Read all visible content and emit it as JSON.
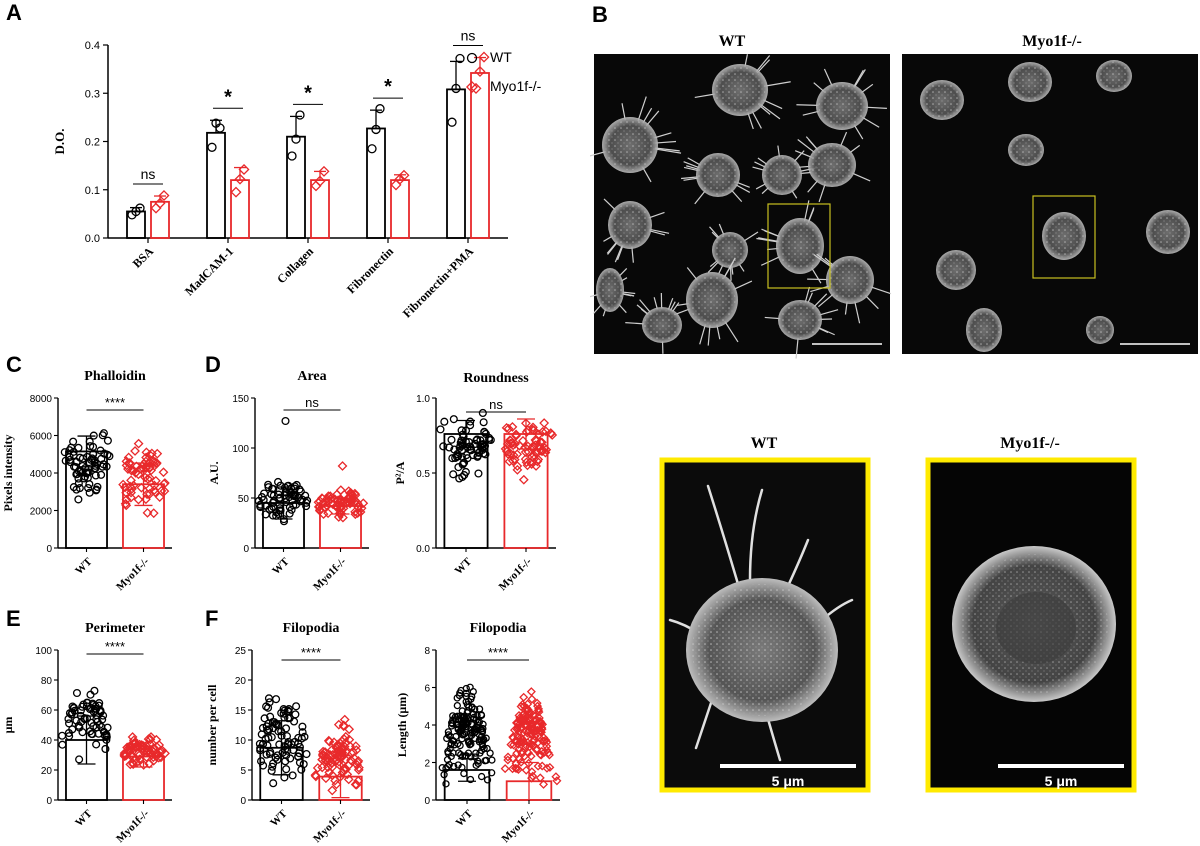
{
  "panel_labels": {
    "a": "A",
    "b": "B",
    "c": "C",
    "d": "D",
    "e": "E",
    "f": "F"
  },
  "colors": {
    "wt": "#000000",
    "ko": "#e8292b",
    "inset_frame": "#ffea00",
    "box": "#c8c020"
  },
  "micrographs": {
    "top_wt_title": "WT",
    "top_ko_title": "Myo1f-/-",
    "zoom_wt_title": "WT",
    "zoom_ko_title": "Myo1f-/-",
    "scale_wt": "5 μm",
    "scale_ko": "5 μm"
  },
  "chart_data": [
    {
      "id": "A",
      "type": "bar",
      "title": "",
      "ylabel": "D.O.",
      "ylim": [
        0,
        0.4
      ],
      "yticks": [
        0.0,
        0.1,
        0.2,
        0.3,
        0.4
      ],
      "categories": [
        "BSA",
        "MadCAM-1",
        "Collagen",
        "Fibronectin",
        "Fibronectin+PMA"
      ],
      "series": [
        {
          "name": "WT",
          "marker": "circle",
          "values": [
            0.055,
            0.218,
            0.21,
            0.227,
            0.308
          ],
          "sd": [
            0.008,
            0.026,
            0.042,
            0.038,
            0.058
          ],
          "points": [
            [
              0.048,
              0.055,
              0.062
            ],
            [
              0.188,
              0.238,
              0.228
            ],
            [
              0.17,
              0.205,
              0.255
            ],
            [
              0.185,
              0.225,
              0.268
            ],
            [
              0.24,
              0.31,
              0.372
            ]
          ]
        },
        {
          "name": "Myo1f-/-",
          "marker": "diamond",
          "values": [
            0.075,
            0.12,
            0.12,
            0.12,
            0.342
          ],
          "sd": [
            0.012,
            0.026,
            0.018,
            0.011,
            0.032
          ],
          "points": [
            [
              0.062,
              0.072,
              0.088
            ],
            [
              0.095,
              0.122,
              0.142
            ],
            [
              0.108,
              0.118,
              0.138
            ],
            [
              0.11,
              0.122,
              0.13
            ],
            [
              0.31,
              0.345,
              0.375
            ]
          ]
        }
      ],
      "significance": [
        "ns",
        "*",
        "*",
        "*",
        "ns"
      ],
      "legend_position": "right"
    },
    {
      "id": "C",
      "type": "bar",
      "title": "Phalloidin",
      "ylabel": "Pixels intensity",
      "ylim": [
        0,
        8000
      ],
      "yticks": [
        0,
        2000,
        4000,
        6000,
        8000
      ],
      "categories": [
        "WT",
        "Myo1f-/-"
      ],
      "values": [
        5150,
        3400
      ],
      "sd": [
        820,
        1130
      ],
      "spread": [
        [
          2200,
          6500
        ],
        [
          1600,
          5900
        ]
      ],
      "significance": "****"
    },
    {
      "id": "D1",
      "type": "bar",
      "title": "Area",
      "ylabel": "A.U.",
      "ylim": [
        0,
        150
      ],
      "yticks": [
        0,
        50,
        100,
        150
      ],
      "categories": [
        "WT",
        "Myo1f-/-"
      ],
      "values": [
        45,
        42
      ],
      "sd": [
        16,
        8
      ],
      "spread": [
        [
          22,
          75
        ],
        [
          28,
          62
        ]
      ],
      "outliers": [
        [
          127
        ],
        [
          82
        ]
      ],
      "significance": "ns"
    },
    {
      "id": "D2",
      "type": "bar",
      "title": "Roundness",
      "ylabel": "P²/A",
      "ylim": [
        0,
        1.0
      ],
      "yticks": [
        0.0,
        0.5,
        1.0
      ],
      "categories": [
        "WT",
        "Myo1f-/-"
      ],
      "values": [
        0.76,
        0.76
      ],
      "sd": [
        0.09,
        0.1
      ],
      "spread": [
        [
          0.37,
          0.96
        ],
        [
          0.4,
          0.95
        ]
      ],
      "significance": "ns"
    },
    {
      "id": "E",
      "type": "bar",
      "title": "Perimeter",
      "ylabel": "μm",
      "ylim": [
        0,
        100
      ],
      "yticks": [
        0,
        20,
        40,
        60,
        80,
        100
      ],
      "categories": [
        "WT",
        "Myo1f-/-"
      ],
      "values": [
        40,
        29
      ],
      "sd": [
        16,
        7
      ],
      "spread": [
        [
          22,
          84
        ],
        [
          20,
          47
        ]
      ],
      "significance": "****"
    },
    {
      "id": "F1",
      "type": "bar",
      "title": "Filopodia",
      "ylabel": "number per cell",
      "ylim": [
        0,
        25
      ],
      "yticks": [
        0,
        5,
        10,
        15,
        20,
        25
      ],
      "categories": [
        "WT",
        "Myo1f-/-"
      ],
      "values": [
        8.7,
        3.9
      ],
      "sd": [
        4.5,
        3.5
      ],
      "spread": [
        [
          0,
          20
        ],
        [
          0,
          14
        ]
      ],
      "significance": "****"
    },
    {
      "id": "F2",
      "type": "bar",
      "title": "Filopodia",
      "ylabel": "Length (μm)",
      "ylim": [
        0,
        8
      ],
      "yticks": [
        0,
        2,
        4,
        6,
        8
      ],
      "categories": [
        "WT",
        "Myo1f-/-"
      ],
      "values": [
        1.6,
        1.0
      ],
      "sd": [
        0.6,
        1.0
      ],
      "spread": [
        [
          0.1,
          7.0
        ],
        [
          0.1,
          6.8
        ]
      ],
      "significance": "****"
    }
  ]
}
